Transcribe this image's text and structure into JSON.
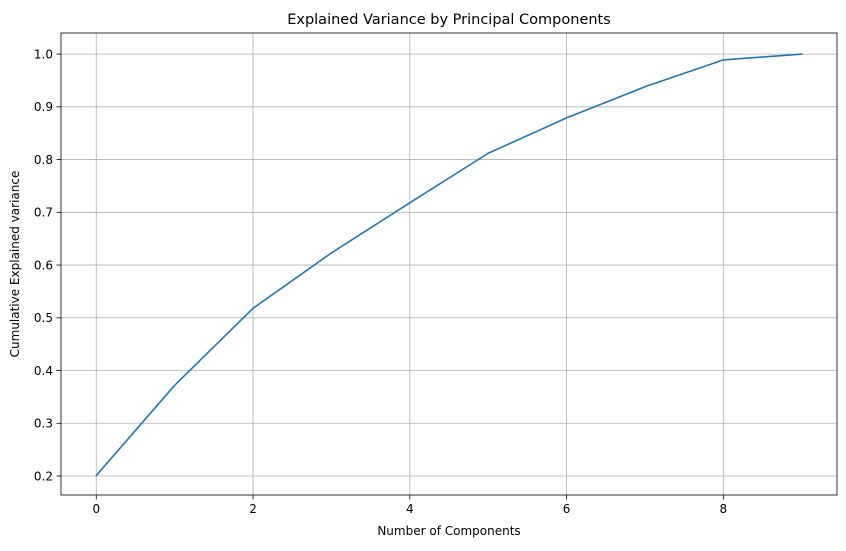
{
  "chart_data": {
    "type": "line",
    "title": "Explained Variance by Principal Components",
    "xlabel": "Number of Components",
    "ylabel": "Cumulative Explained variance",
    "xlim": [
      -0.45,
      9.45
    ],
    "ylim": [
      0.164,
      1.04
    ],
    "xticks": [
      0,
      2,
      4,
      6,
      8
    ],
    "xtick_labels": [
      "0",
      "2",
      "4",
      "6",
      "8"
    ],
    "yticks": [
      0.2,
      0.3,
      0.4,
      0.5,
      0.6,
      0.7,
      0.8,
      0.9,
      1.0
    ],
    "ytick_labels": [
      "0.2",
      "0.3",
      "0.4",
      "0.5",
      "0.6",
      "0.7",
      "0.8",
      "0.9",
      "1.0"
    ],
    "grid": true,
    "series": [
      {
        "x": [
          0,
          1,
          2,
          3,
          4,
          5,
          6,
          7,
          8,
          9
        ],
        "values": [
          0.201,
          0.372,
          0.518,
          0.623,
          0.718,
          0.812,
          0.879,
          0.938,
          0.989,
          1.0
        ],
        "color": "#1f77b4"
      }
    ],
    "colors": {
      "line": "#1f77b4",
      "grid": "#b0b0b0",
      "axes": "#000000",
      "background": "#ffffff"
    }
  }
}
